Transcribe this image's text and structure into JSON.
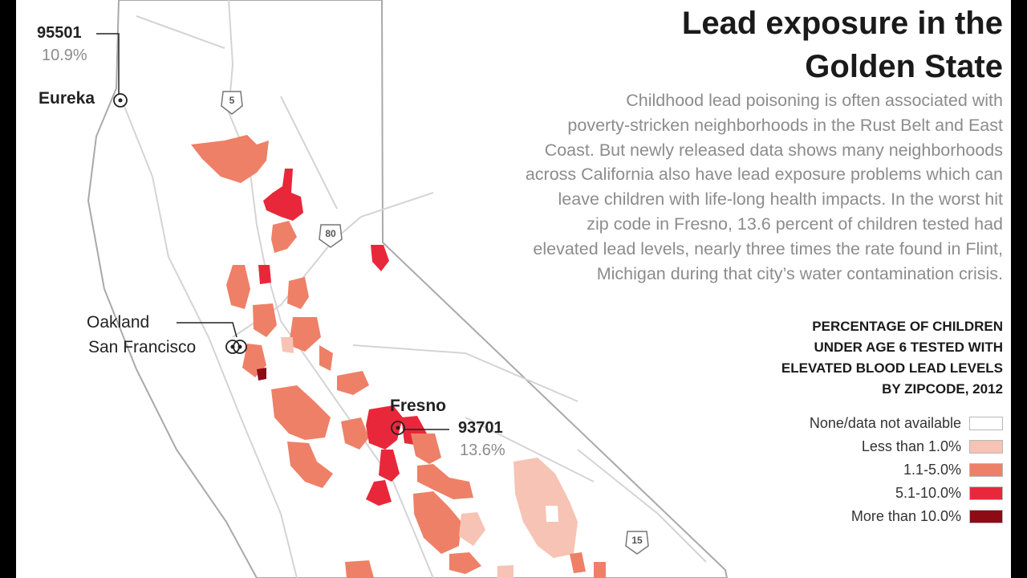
{
  "title": {
    "line1": "Lead exposure in the",
    "line2": "Golden State"
  },
  "intro": {
    "lines": [
      "Childhood lead poisoning is often associated with",
      "poverty-stricken neighborhoods in the Rust Belt and East",
      "Coast. But newly released data shows many neighborhoods",
      "across California also have lead exposure problems which can",
      "leave children with life-long health impacts. In the worst hit",
      "zip code in Fresno, 13.6 percent of children tested had",
      "elevated lead levels, nearly three times the rate found in Flint,",
      "Michigan during that city’s water contamination crisis."
    ]
  },
  "legend": {
    "title_lines": [
      "PERCENTAGE OF CHILDREN",
      "UNDER AGE 6 TESTED WITH",
      "ELEVATED BLOOD LEAD LEVELS",
      "BY ZIPCODE, 2012"
    ],
    "items": [
      {
        "label": "None/data not available",
        "color": "#ffffff"
      },
      {
        "label": "Less than 1.0%",
        "color": "#f6c3b4"
      },
      {
        "label": "1.1-5.0%",
        "color": "#ee8067"
      },
      {
        "label": "5.1-10.0%",
        "color": "#e8283a"
      },
      {
        "label": "More than 10.0%",
        "color": "#8c0b15"
      }
    ]
  },
  "cities": {
    "eureka": "Eureka",
    "oakland": "Oakland",
    "san_francisco": "San Francisco",
    "fresno": "Fresno"
  },
  "callouts": {
    "eureka": {
      "zip": "95501",
      "pct": "10.9%"
    },
    "fresno": {
      "zip": "93701",
      "pct": "13.6%"
    }
  },
  "highways": [
    "5",
    "80",
    "15"
  ],
  "colors": {
    "state_fill": "#ffffff",
    "border": "#a9a9a9",
    "roads": "#d4d4d4"
  }
}
